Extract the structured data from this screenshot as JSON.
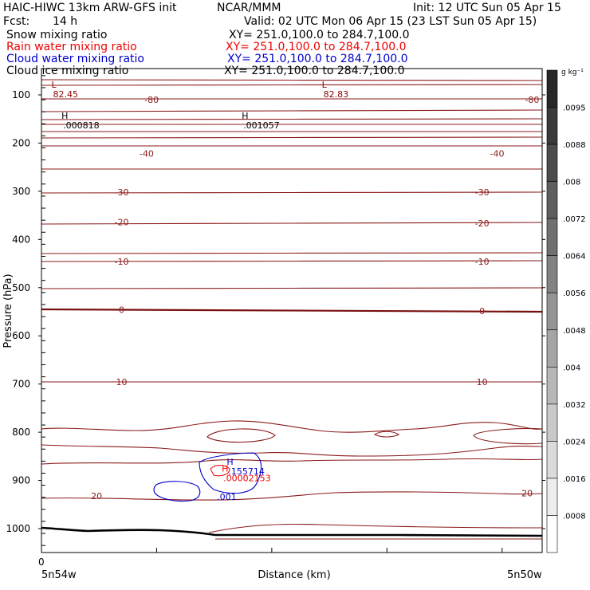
{
  "header": {
    "model": "HAIC-HIWC 13km ARW-GFS init",
    "org": "NCAR/MMM",
    "init": "Init: 12 UTC Sun 05 Apr 15",
    "fcst_label": "Fcst:",
    "fcst_value": "14 h",
    "valid": "Valid: 02 UTC Mon 06 Apr 15 (23 LST Sun 05 Apr 15)",
    "fields": [
      {
        "name": "Snow mixing ratio",
        "xy": "XY= 251.0,100.0 to 284.7,100.0",
        "color": "#000000"
      },
      {
        "name": "Rain water mixing ratio",
        "xy": "XY= 251.0,100.0 to 284.7,100.0",
        "color": "#ee0000"
      },
      {
        "name": "Cloud water mixing ratio",
        "xy": "XY= 251.0,100.0 to 284.7,100.0",
        "color": "#0000cc"
      },
      {
        "name": "Cloud ice mixing ratio",
        "xy": "XY= 251.0,100.0 to 284.7,100.0",
        "color": "#000000"
      }
    ]
  },
  "chart_data": {
    "type": "contour",
    "ylabel": "Pressure (hPa)",
    "xlabel": "Distance (km)",
    "yticks": [
      100,
      200,
      300,
      400,
      500,
      600,
      700,
      800,
      900,
      1000
    ],
    "ylim": [
      1050,
      55
    ],
    "x_start_tick": "0",
    "x_left_label": "5n54w",
    "x_right_label": "5n50w",
    "colorbar_unit": "g kg⁻¹",
    "colorbar_levels": [
      ".0095",
      ".0088",
      ".008",
      ".0072",
      ".0064",
      ".0056",
      ".0048",
      ".004",
      ".0032",
      ".0024",
      ".0016",
      ".0008"
    ],
    "isotherm_labels": [
      {
        "text": "-80",
        "x": 0.22,
        "p": 110
      },
      {
        "text": "-80",
        "x": 0.98,
        "p": 110
      },
      {
        "text": "-40",
        "x": 0.21,
        "p": 222
      },
      {
        "text": "-40",
        "x": 0.91,
        "p": 222
      },
      {
        "text": "-30",
        "x": 0.16,
        "p": 302
      },
      {
        "text": "-30",
        "x": 0.88,
        "p": 302
      },
      {
        "text": "-20",
        "x": 0.16,
        "p": 364
      },
      {
        "text": "-20",
        "x": 0.88,
        "p": 366
      },
      {
        "text": "-10",
        "x": 0.16,
        "p": 446
      },
      {
        "text": "-10",
        "x": 0.88,
        "p": 446
      },
      {
        "text": "0",
        "x": 0.16,
        "p": 546
      },
      {
        "text": "0",
        "x": 0.88,
        "p": 548
      },
      {
        "text": "10",
        "x": 0.16,
        "p": 696
      },
      {
        "text": "10",
        "x": 0.88,
        "p": 696
      },
      {
        "text": "20",
        "x": 0.11,
        "p": 932
      },
      {
        "text": "20",
        "x": 0.97,
        "p": 926
      }
    ],
    "extrema": [
      {
        "mark": "L",
        "value": "82.45",
        "x": 0.02,
        "p": 85,
        "color": "#8b0000"
      },
      {
        "mark": "L",
        "value": "82.83",
        "x": 0.56,
        "p": 85,
        "color": "#8b0000"
      },
      {
        "mark": "H",
        "value": ".000818",
        "x": 0.04,
        "p": 150,
        "color": "#000000"
      },
      {
        "mark": "H",
        "value": ".001057",
        "x": 0.4,
        "p": 150,
        "color": "#000000"
      },
      {
        "mark": "H",
        "value": ".155714",
        "x": 0.37,
        "p": 868,
        "color": "#0000cc"
      },
      {
        "mark": "H",
        "value": ".00002153",
        "x": 0.36,
        "p": 882,
        "color": "#ee0000"
      }
    ],
    "cloud_label": {
      "text": ".001",
      "x": 0.37,
      "p": 934
    }
  }
}
